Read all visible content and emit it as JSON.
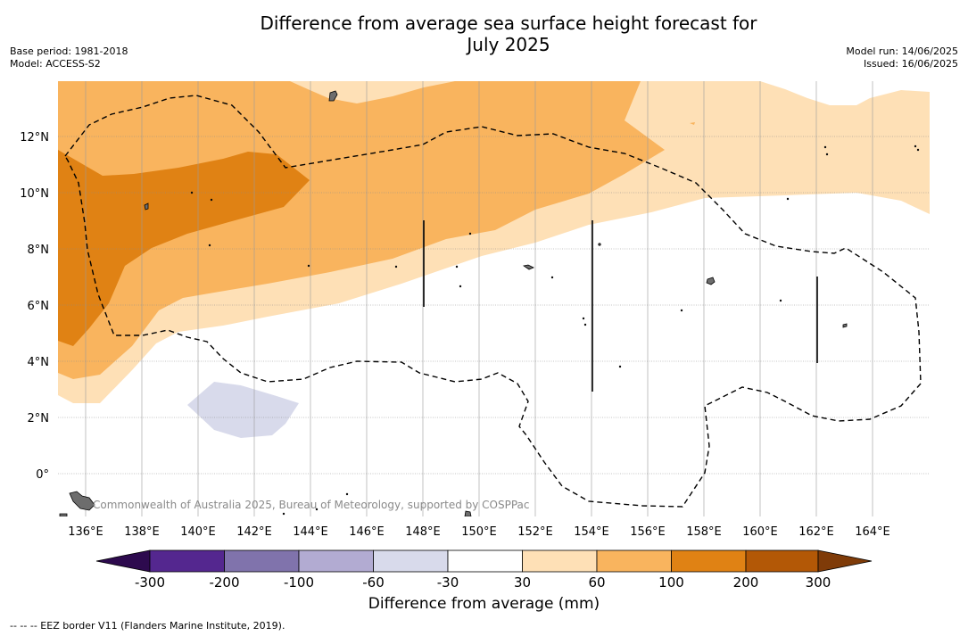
{
  "header": {
    "title_line1": "Difference from average sea surface height forecast for",
    "title_line2": "July 2025",
    "base_period": "Base period: 1981-2018",
    "model": "Model: ACCESS-S2",
    "model_run": "Model run: 14/06/2025",
    "issued": "Issued: 16/06/2025"
  },
  "map": {
    "lat_labels": [
      "12°N",
      "10°N",
      "8°N",
      "6°N",
      "4°N",
      "2°N",
      "0°"
    ],
    "lon_labels": [
      "136°E",
      "138°E",
      "140°E",
      "142°E",
      "144°E",
      "146°E",
      "148°E",
      "150°E",
      "152°E",
      "154°E",
      "156°E",
      "158°E",
      "160°E",
      "162°E",
      "164°E"
    ],
    "copyright": "Commonwealth of Australia 2025, Bureau of Meteorology, supported by COSPPac",
    "colors": {
      "lt_neg300": "#2d0a4e",
      "neg300_neg200": "#54278f",
      "neg200_neg100": "#8073ac",
      "neg100_neg60": "#b2abd2",
      "neg60_neg30": "#d8daeb",
      "neg30_30": "#ffffff",
      "c30_60": "#fee0b6",
      "c60_100": "#f9b45e",
      "c100_200": "#e08214",
      "c200_300": "#b35806",
      "gt_300": "#7f3b08"
    }
  },
  "colorbar": {
    "ticks": [
      "-300",
      "-200",
      "-100",
      "-60",
      "-30",
      "30",
      "60",
      "100",
      "200",
      "300"
    ],
    "label": "Difference from average (mm)"
  },
  "footer": {
    "legend_text": "--  --  -- EEZ border V11 (Flanders Marine Institute, 2019)."
  }
}
